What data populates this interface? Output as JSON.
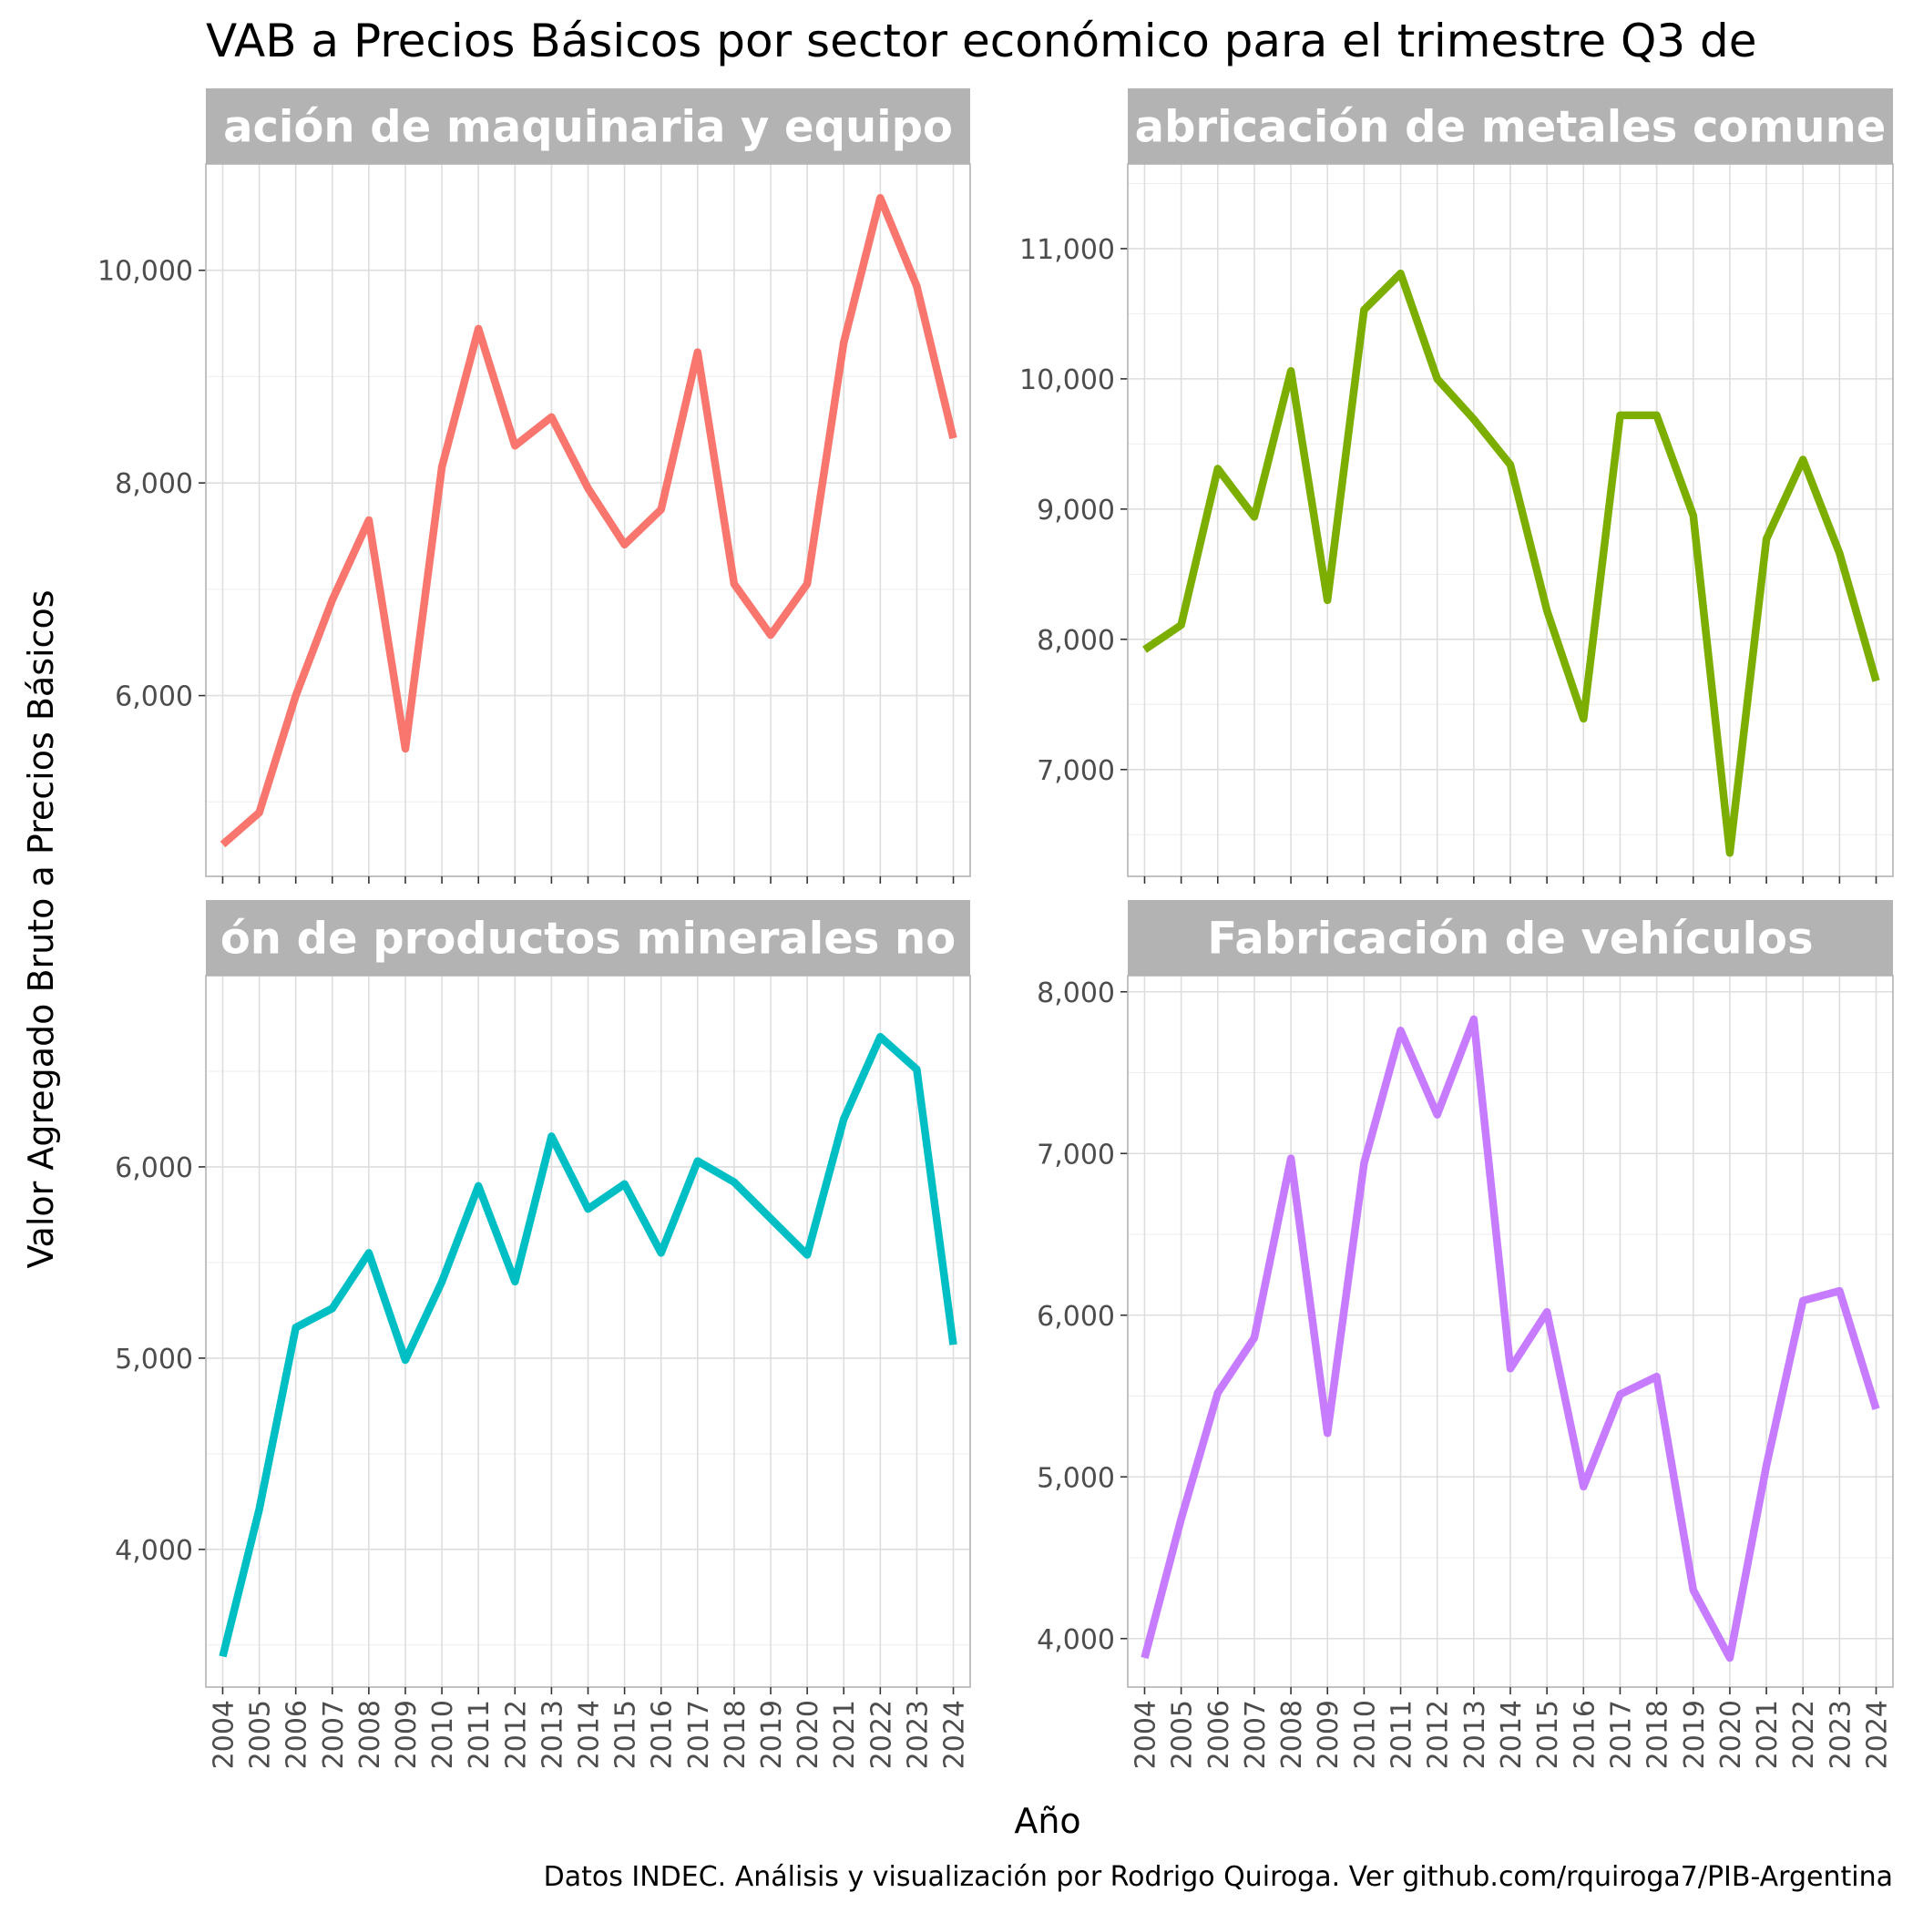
{
  "title": "VAB a Precios Básicos por sector económico para el trimestre Q3 de",
  "xlabel": "Año",
  "ylabel": "Valor Agregado Bruto a Precios Básicos",
  "caption": "Datos INDEC. Análisis y visualización por Rodrigo Quiroga. Ver github.com/rquiroga7/PIB-Argentina",
  "chart_data": [
    {
      "type": "line",
      "panel_title": "ación de maquinaria y equipo",
      "color": "#F8766D",
      "x": [
        2004,
        2005,
        2006,
        2007,
        2008,
        2009,
        2010,
        2011,
        2012,
        2013,
        2014,
        2015,
        2016,
        2017,
        2018,
        2019,
        2020,
        2021,
        2022,
        2023,
        2024
      ],
      "values": [
        4600,
        4900,
        6000,
        6900,
        7650,
        5500,
        8150,
        9450,
        8350,
        8620,
        7950,
        7420,
        7750,
        9230,
        7050,
        6570,
        7050,
        9320,
        10680,
        9850,
        8420
      ],
      "ylim": [
        4300,
        11000
      ],
      "y_ticks": [
        6000,
        8000,
        10000
      ],
      "y_tick_labels": [
        "6,000",
        "8,000",
        "10,000"
      ]
    },
    {
      "type": "line",
      "panel_title": "abricación de metales comune",
      "color": "#7CAE00",
      "x": [
        2004,
        2005,
        2006,
        2007,
        2008,
        2009,
        2010,
        2011,
        2012,
        2013,
        2014,
        2015,
        2016,
        2017,
        2018,
        2019,
        2020,
        2021,
        2022,
        2023,
        2024
      ],
      "values": [
        7920,
        8110,
        9310,
        8940,
        10060,
        8300,
        10530,
        10810,
        10000,
        9690,
        9340,
        8220,
        7390,
        9720,
        9720,
        8950,
        6360,
        8770,
        9380,
        8660,
        7680
      ],
      "ylim": [
        6180,
        11650
      ],
      "y_ticks": [
        7000,
        8000,
        9000,
        10000,
        11000
      ],
      "y_tick_labels": [
        "7,000",
        "8,000",
        "9,000",
        "10,000",
        "11,000"
      ]
    },
    {
      "type": "line",
      "panel_title": "ón de productos minerales no",
      "color": "#00BFC4",
      "x": [
        2004,
        2005,
        2006,
        2007,
        2008,
        2009,
        2010,
        2011,
        2012,
        2013,
        2014,
        2015,
        2016,
        2017,
        2018,
        2019,
        2020,
        2021,
        2022,
        2023,
        2024
      ],
      "values": [
        3440,
        4210,
        5160,
        5260,
        5550,
        4990,
        5400,
        5900,
        5400,
        6160,
        5780,
        5910,
        5550,
        6030,
        5920,
        5730,
        5540,
        6250,
        6680,
        6510,
        5070
      ],
      "ylim": [
        3280,
        7000
      ],
      "y_ticks": [
        4000,
        5000,
        6000
      ],
      "y_tick_labels": [
        "4,000",
        "5,000",
        "6,000"
      ]
    },
    {
      "type": "line",
      "panel_title": "Fabricación de vehículos",
      "color": "#C77CFF",
      "x": [
        2004,
        2005,
        2006,
        2007,
        2008,
        2009,
        2010,
        2011,
        2012,
        2013,
        2014,
        2015,
        2016,
        2017,
        2018,
        2019,
        2020,
        2021,
        2022,
        2023,
        2024
      ],
      "values": [
        3880,
        4740,
        5520,
        5860,
        6970,
        5270,
        6940,
        7760,
        7240,
        7830,
        5670,
        6020,
        4940,
        5510,
        5620,
        4300,
        3880,
        5070,
        6090,
        6150,
        5420
      ],
      "ylim": [
        3700,
        8100
      ],
      "y_ticks": [
        4000,
        5000,
        6000,
        7000,
        8000
      ],
      "y_tick_labels": [
        "4,000",
        "5,000",
        "6,000",
        "7,000",
        "8,000"
      ]
    }
  ]
}
